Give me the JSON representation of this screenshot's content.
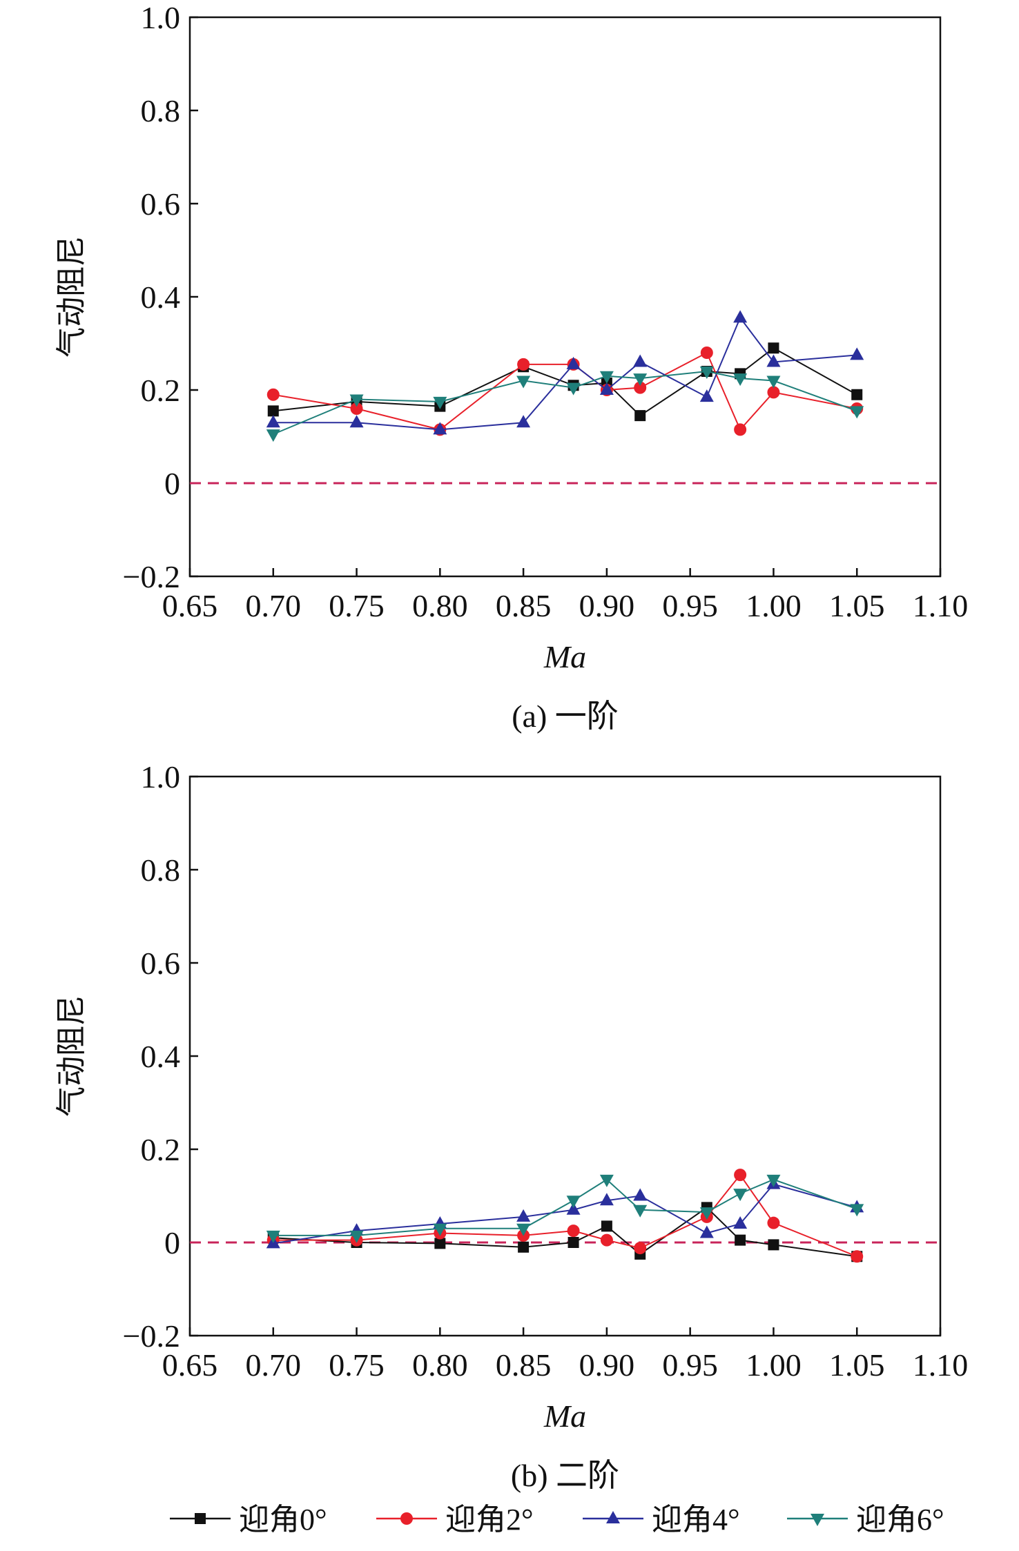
{
  "chart_data": [
    {
      "type": "line",
      "caption": "(a) 一阶",
      "xlabel": "Ma",
      "ylabel": "气动阻尼",
      "xlim": [
        0.65,
        1.1
      ],
      "ylim": [
        -0.2,
        1.0
      ],
      "xticks": [
        "0.65",
        "0.70",
        "0.75",
        "0.80",
        "0.85",
        "0.90",
        "0.95",
        "1.00",
        "1.05",
        "1.10"
      ],
      "yticks": [
        "−0.2",
        "0",
        "0.2",
        "0.4",
        "0.6",
        "0.8",
        "1.0"
      ],
      "reference_line": 0,
      "x": [
        0.7,
        0.75,
        0.8,
        0.85,
        0.88,
        0.9,
        0.92,
        0.96,
        0.98,
        1.0,
        1.05
      ],
      "series": [
        {
          "name": "迎角0°",
          "values": [
            0.155,
            0.175,
            0.165,
            0.25,
            0.21,
            0.215,
            0.145,
            0.24,
            0.235,
            0.29,
            0.19
          ]
        },
        {
          "name": "迎角2°",
          "values": [
            0.19,
            0.16,
            0.115,
            0.255,
            0.255,
            0.2,
            0.205,
            0.28,
            0.115,
            0.195,
            0.16
          ]
        },
        {
          "name": "迎角4°",
          "values": [
            0.13,
            0.13,
            0.115,
            0.13,
            0.255,
            0.2,
            0.26,
            0.185,
            0.355,
            0.26,
            0.275
          ]
        },
        {
          "name": "迎角6°",
          "values": [
            0.105,
            0.18,
            0.175,
            0.22,
            0.205,
            0.23,
            0.225,
            0.24,
            0.225,
            0.22,
            0.155
          ]
        }
      ]
    },
    {
      "type": "line",
      "caption": "(b) 二阶",
      "xlabel": "Ma",
      "ylabel": "气动阻尼",
      "xlim": [
        0.65,
        1.1
      ],
      "ylim": [
        -0.2,
        1.0
      ],
      "xticks": [
        "0.65",
        "0.70",
        "0.75",
        "0.80",
        "0.85",
        "0.90",
        "0.95",
        "1.00",
        "1.05",
        "1.10"
      ],
      "yticks": [
        "−0.2",
        "0",
        "0.2",
        "0.4",
        "0.6",
        "0.8",
        "1.0"
      ],
      "reference_line": 0,
      "x": [
        0.7,
        0.75,
        0.8,
        0.85,
        0.88,
        0.9,
        0.92,
        0.96,
        0.98,
        1.0,
        1.05
      ],
      "series": [
        {
          "name": "迎角0°",
          "values": [
            0.01,
            0.0,
            -0.002,
            -0.01,
            0.0,
            0.035,
            -0.025,
            0.075,
            0.005,
            -0.005,
            -0.03
          ]
        },
        {
          "name": "迎角2°",
          "values": [
            0.005,
            0.005,
            0.02,
            0.015,
            0.025,
            0.005,
            -0.012,
            0.055,
            0.145,
            0.042,
            -0.03
          ]
        },
        {
          "name": "迎角4°",
          "values": [
            -0.002,
            0.025,
            0.04,
            0.055,
            0.07,
            0.09,
            0.1,
            0.02,
            0.04,
            0.125,
            0.075
          ]
        },
        {
          "name": "迎角6°",
          "values": [
            0.015,
            0.015,
            0.03,
            0.03,
            0.09,
            0.135,
            0.07,
            0.065,
            0.105,
            0.135,
            0.072
          ]
        }
      ]
    }
  ],
  "legend": [
    {
      "label": "迎角0°",
      "marker": "square",
      "color": "#111111"
    },
    {
      "label": "迎角2°",
      "marker": "circle",
      "color": "#e8202a"
    },
    {
      "label": "迎角4°",
      "marker": "triangle-up",
      "color": "#2a2f9c"
    },
    {
      "label": "迎角6°",
      "marker": "triangle-down",
      "color": "#1f7f7a"
    }
  ],
  "colors": {
    "axis": "#111111",
    "reference": "#c8245a",
    "series": [
      "#111111",
      "#e8202a",
      "#2a2f9c",
      "#1f7f7a"
    ]
  }
}
